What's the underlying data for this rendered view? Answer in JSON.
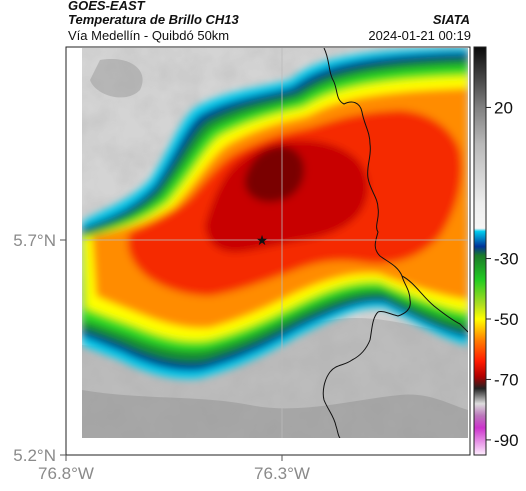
{
  "header": {
    "satellite": "GOES-EAST",
    "product": "Temperatura de Brillo CH13",
    "location": "Vía Medellín - Quibdó 50km",
    "organization": "SIATA",
    "timestamp": "2024-01-21 00:19"
  },
  "axes": {
    "y_ticks": [
      "5.7°N",
      "5.2°N"
    ],
    "x_ticks": [
      "76.8°W",
      "76.3°W"
    ]
  },
  "colorbar": {
    "ticks": [
      "20",
      "-30",
      "-50",
      "-70",
      "-90"
    ],
    "tick_values": [
      20,
      -30,
      -50,
      -70,
      -90
    ],
    "range": [
      -95,
      40
    ],
    "stops": [
      {
        "v": 40,
        "c": "#0a0a0a"
      },
      {
        "v": 30,
        "c": "#444444"
      },
      {
        "v": 20,
        "c": "#808080"
      },
      {
        "v": 8,
        "c": "#b8b8b8"
      },
      {
        "v": -12,
        "c": "#eeeeee"
      },
      {
        "v": -20,
        "c": "#f6f6f6"
      },
      {
        "v": -21,
        "c": "#00ccee"
      },
      {
        "v": -26,
        "c": "#003399"
      },
      {
        "v": -29,
        "c": "#1b7a2a"
      },
      {
        "v": -37,
        "c": "#22cc22"
      },
      {
        "v": -45,
        "c": "#aadd22"
      },
      {
        "v": -50,
        "c": "#ffff00"
      },
      {
        "v": -57,
        "c": "#ff7f00"
      },
      {
        "v": -64,
        "c": "#ff1a00"
      },
      {
        "v": -69,
        "c": "#b00000"
      },
      {
        "v": -73,
        "c": "#222222"
      },
      {
        "v": -78,
        "c": "#dddddd"
      },
      {
        "v": -82,
        "c": "#bb77bb"
      },
      {
        "v": -86,
        "c": "#cc33cc"
      },
      {
        "v": -95,
        "c": "#ffeeff"
      }
    ]
  },
  "map_colors": {
    "cold_core": "#7a0000",
    "deep_red": "#c80000",
    "red": "#f52a00",
    "orange": "#ff8c00",
    "yellow": "#ffff00",
    "green": "#33dd22",
    "dark_green": "#138a2e",
    "dark_blue": "#002b8a",
    "cyan": "#00ccee",
    "clear_grey": "#d6d6d6"
  },
  "markers": [
    {
      "name": "star-marker",
      "lon": -76.32,
      "lat": 5.7
    }
  ]
}
